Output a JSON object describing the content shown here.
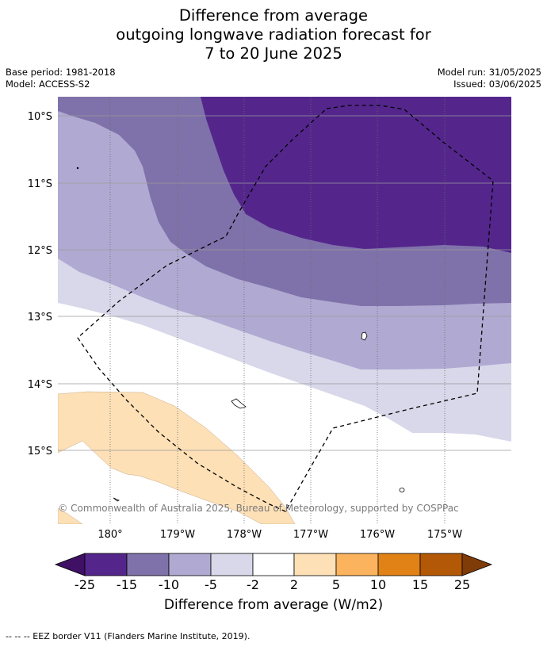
{
  "title": {
    "line1": "Difference from average",
    "line2": "outgoing longwave radiation forecast for",
    "line3": "7 to 20 June 2025"
  },
  "meta": {
    "base_period": "Base period: 1981-2018",
    "model": "Model: ACCESS-S2",
    "model_run": "Model run: 31/05/2025",
    "issued": "Issued: 03/06/2025"
  },
  "map": {
    "lat_labels": [
      "10°S",
      "11°S",
      "12°S",
      "13°S",
      "14°S",
      "15°S"
    ],
    "lon_labels": [
      "180°",
      "179°W",
      "178°W",
      "177°W",
      "176°W",
      "175°W"
    ],
    "copyright": "© Commonwealth of Australia 2025, Bureau of Meteorology, supported by COSPPac"
  },
  "colorbar": {
    "ticks": [
      "-25",
      "-15",
      "-10",
      "-5",
      "-2",
      "2",
      "5",
      "10",
      "15",
      "25"
    ],
    "colors": [
      "#3f1063",
      "#54268c",
      "#7f72aa",
      "#b0aad2",
      "#d8d8ea",
      "#ffffff",
      "#fde0b6",
      "#fbb45d",
      "#e08216",
      "#b35806",
      "#7f3b08"
    ],
    "label": "Difference from average (W/m2)"
  },
  "footnote": "--  --  -- EEZ border V11 (Flanders Marine Institute, 2019)."
}
